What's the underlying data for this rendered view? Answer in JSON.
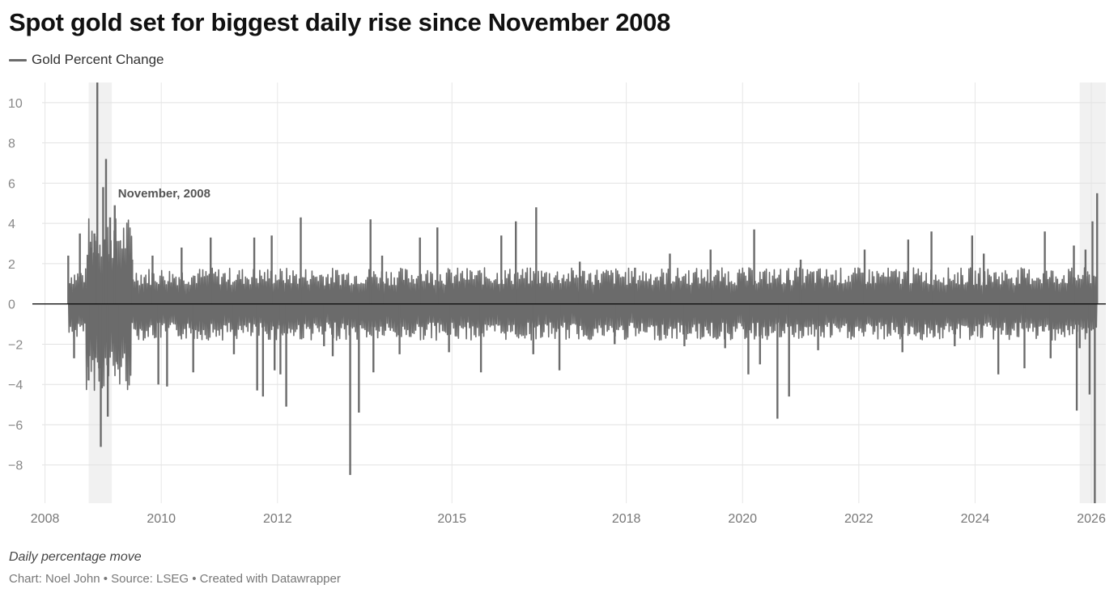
{
  "title": "Spot gold set for biggest daily rise since November 2008",
  "subtitle": "Daily percentage move",
  "credit": "Chart: Noel John • Source: LSEG • Created with Datawrapper",
  "chart_data": {
    "type": "line",
    "title": "Spot gold set for biggest daily rise since November 2008",
    "subtitle": "Daily percentage move",
    "xlabel": "",
    "ylabel": "",
    "series": [
      {
        "name": "Gold Percent Change",
        "color": "#6b6b6b",
        "points": [
          [
            2008.4,
            2.4
          ],
          [
            2008.5,
            -2.7
          ],
          [
            2008.6,
            3.5
          ],
          [
            2008.75,
            -3.8
          ],
          [
            2008.8,
            2.8
          ],
          [
            2008.85,
            3.5
          ],
          [
            2008.9,
            11.0
          ],
          [
            2008.93,
            -3.2
          ],
          [
            2008.96,
            -7.1
          ],
          [
            2009.0,
            5.8
          ],
          [
            2009.05,
            7.2
          ],
          [
            2009.08,
            -5.6
          ],
          [
            2009.12,
            4.3
          ],
          [
            2009.2,
            4.9
          ],
          [
            2009.25,
            -3.0
          ],
          [
            2009.5,
            2.2
          ],
          [
            2009.85,
            2.4
          ],
          [
            2009.95,
            -4.0
          ],
          [
            2010.1,
            -4.1
          ],
          [
            2010.35,
            2.8
          ],
          [
            2010.55,
            -3.4
          ],
          [
            2010.85,
            3.3
          ],
          [
            2011.25,
            -2.5
          ],
          [
            2011.6,
            3.3
          ],
          [
            2011.65,
            -4.3
          ],
          [
            2011.75,
            -4.6
          ],
          [
            2011.9,
            3.4
          ],
          [
            2011.95,
            -3.3
          ],
          [
            2012.05,
            -3.5
          ],
          [
            2012.15,
            -5.1
          ],
          [
            2012.4,
            4.3
          ],
          [
            2012.8,
            -2.1
          ],
          [
            2012.95,
            -2.6
          ],
          [
            2013.25,
            -8.5
          ],
          [
            2013.4,
            -5.4
          ],
          [
            2013.6,
            4.2
          ],
          [
            2013.65,
            -3.4
          ],
          [
            2013.8,
            2.4
          ],
          [
            2014.1,
            -2.5
          ],
          [
            2014.45,
            3.3
          ],
          [
            2014.75,
            3.8
          ],
          [
            2014.95,
            -2.4
          ],
          [
            2015.5,
            -3.4
          ],
          [
            2015.85,
            3.4
          ],
          [
            2016.1,
            4.1
          ],
          [
            2016.4,
            -2.5
          ],
          [
            2016.45,
            4.8
          ],
          [
            2016.85,
            -3.3
          ],
          [
            2017.2,
            2.1
          ],
          [
            2017.8,
            -2.0
          ],
          [
            2018.15,
            1.8
          ],
          [
            2018.75,
            2.5
          ],
          [
            2019.0,
            -2.1
          ],
          [
            2019.45,
            2.7
          ],
          [
            2019.7,
            -2.2
          ],
          [
            2020.1,
            -3.5
          ],
          [
            2020.2,
            3.7
          ],
          [
            2020.3,
            -3.0
          ],
          [
            2020.6,
            -5.7
          ],
          [
            2020.8,
            -4.6
          ],
          [
            2021.0,
            2.2
          ],
          [
            2021.3,
            -2.3
          ],
          [
            2022.1,
            2.7
          ],
          [
            2022.75,
            -2.4
          ],
          [
            2022.85,
            3.2
          ],
          [
            2023.25,
            3.6
          ],
          [
            2023.65,
            -2.1
          ],
          [
            2023.95,
            3.4
          ],
          [
            2024.15,
            2.5
          ],
          [
            2024.4,
            -3.5
          ],
          [
            2024.85,
            -3.2
          ],
          [
            2025.2,
            3.6
          ],
          [
            2025.3,
            -2.7
          ],
          [
            2025.7,
            2.9
          ],
          [
            2025.75,
            -5.3
          ],
          [
            2025.8,
            -2.2
          ],
          [
            2025.9,
            2.7
          ],
          [
            2025.97,
            -4.5
          ],
          [
            2026.02,
            4.1
          ],
          [
            2026.06,
            -9.9
          ],
          [
            2026.1,
            5.5
          ]
        ]
      }
    ],
    "x_ticks": [
      "2008",
      "2010",
      "2012",
      "2015",
      "2018",
      "2020",
      "2022",
      "2024",
      "2026"
    ],
    "x_tick_values": [
      2008,
      2010,
      2012,
      2015,
      2018,
      2020,
      2022,
      2024,
      2026
    ],
    "y_ticks": [
      "10",
      "8",
      "6",
      "4",
      "2",
      "0",
      "−2",
      "−4",
      "−6",
      "−8"
    ],
    "y_tick_values": [
      10,
      8,
      6,
      4,
      2,
      0,
      -2,
      -4,
      -6,
      -8
    ],
    "xlim": [
      2007.95,
      2026.25
    ],
    "ylim": [
      -9.9,
      11.0
    ],
    "zero_line": true,
    "highlight_ranges": [
      [
        2008.75,
        2009.15
      ],
      [
        2025.8,
        2026.25
      ]
    ],
    "annotations": [
      {
        "text": "November, 2008",
        "x": 2009.2,
        "y": 5.5
      }
    ],
    "grid": true,
    "legend": "top-left"
  }
}
